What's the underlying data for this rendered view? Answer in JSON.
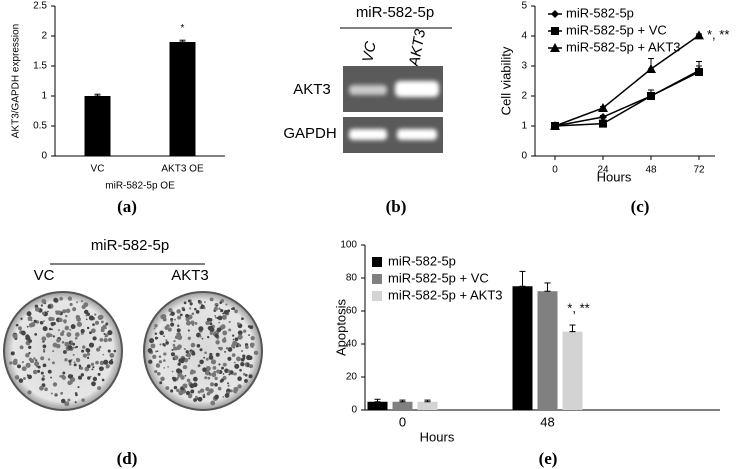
{
  "chart_data": [
    {
      "type": "bar",
      "panel_label": "(a)",
      "ylabel": "AKT3/GAPDH expression",
      "xlabel": "miR-582-5p OE",
      "categories": [
        "VC",
        "AKT3 OE"
      ],
      "values": [
        1.0,
        1.9
      ],
      "errors": [
        0.03,
        0.03
      ],
      "color": "#000000",
      "annotation": "*",
      "ylim": [
        0,
        2.5
      ],
      "yticks": [
        0,
        0.5,
        1,
        1.5,
        2,
        2.5
      ]
    },
    {
      "type": "line",
      "panel_label": "(c)",
      "ylabel": "Cell viability",
      "xlabel": "Hours",
      "x": [
        0,
        24,
        48,
        72
      ],
      "xlim": [
        -10,
        80
      ],
      "xticks": [
        0,
        24,
        48,
        72
      ],
      "ylim": [
        0,
        5
      ],
      "yticks": [
        0,
        1,
        2,
        3,
        4,
        5
      ],
      "legend": "upper left",
      "annotation": "*, **",
      "series": [
        {
          "name": "miR-582-5p",
          "color": "#000000",
          "marker": "diamond",
          "values": [
            1.0,
            1.3,
            2.0,
            2.85
          ],
          "errors": [
            0.03,
            0.05,
            0.2,
            0.3
          ]
        },
        {
          "name": "miR-582-5p + VC",
          "color": "#000000",
          "marker": "square",
          "values": [
            1.0,
            1.08,
            2.0,
            2.8
          ],
          "errors": [
            0.03,
            0.05,
            0.1,
            0.2
          ]
        },
        {
          "name": "miR-582-5p + AKT3",
          "color": "#000000",
          "marker": "triangle",
          "values": [
            1.0,
            1.6,
            2.9,
            4.02
          ],
          "errors": [
            0.03,
            0.05,
            0.35,
            0.05
          ]
        }
      ]
    },
    {
      "type": "bar",
      "panel_label": "(e)",
      "ylabel": "Apoptosis",
      "xlabel": "Hours",
      "categories": [
        "0",
        "48"
      ],
      "ylim": [
        0,
        100
      ],
      "yticks": [
        0,
        20,
        40,
        60,
        80,
        100
      ],
      "legend": "upper left",
      "annotation": "*, **",
      "series": [
        {
          "name": "miR-582-5p",
          "color": "#000000",
          "values": [
            5,
            75
          ],
          "errors": [
            1.5,
            9
          ]
        },
        {
          "name": "miR-582-5p + VC",
          "color": "#808080",
          "values": [
            5,
            72
          ],
          "errors": [
            1,
            5
          ]
        },
        {
          "name": "miR-582-5p + AKT3",
          "color": "#d3d3d3",
          "values": [
            5,
            47.5
          ],
          "errors": [
            1,
            4
          ]
        }
      ]
    }
  ],
  "panel_b": {
    "title": "miR-582-5p",
    "lanes": [
      "VC",
      "AKT3"
    ],
    "rows": [
      "AKT3",
      "GAPDH"
    ],
    "label": "(b)"
  },
  "panel_d": {
    "title": "miR-582-5p",
    "columns": [
      "VC",
      "AKT3"
    ],
    "label": "(d)"
  }
}
